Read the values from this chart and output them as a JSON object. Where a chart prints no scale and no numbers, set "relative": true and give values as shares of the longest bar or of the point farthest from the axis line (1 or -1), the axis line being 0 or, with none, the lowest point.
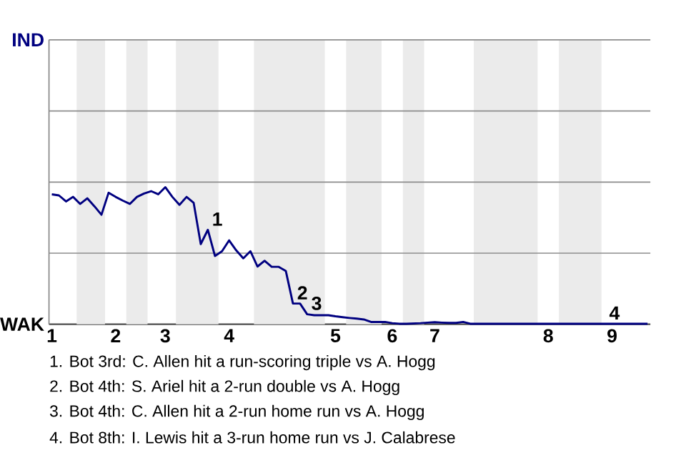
{
  "chart_data": {
    "type": "line",
    "relative": true,
    "ref_lines": [
      {
        "axis": "y",
        "value": 0.519,
        "color": "#8c8c8c"
      },
      {
        "axis": "y",
        "value": 1.037,
        "color": "#8c8c8c"
      },
      {
        "axis": "y",
        "value": 1.556,
        "color": "#8c8c8c"
      },
      {
        "axis": "y",
        "value": 2.075,
        "color": "#8c8c8c"
      }
    ],
    "categories": [
      "1",
      null,
      null,
      null,
      null,
      null,
      null,
      null,
      null,
      "2",
      null,
      null,
      null,
      null,
      null,
      null,
      "3",
      null,
      null,
      null,
      null,
      null,
      null,
      null,
      null,
      "4",
      null,
      null,
      null,
      null,
      null,
      null,
      null,
      null,
      null,
      null,
      null,
      null,
      null,
      null,
      "5",
      null,
      null,
      null,
      null,
      null,
      null,
      null,
      "6",
      null,
      null,
      null,
      null,
      null,
      "7",
      null,
      null,
      null,
      null,
      null,
      null,
      null,
      null,
      null,
      null,
      null,
      null,
      null,
      null,
      null,
      "8",
      null,
      null,
      null,
      null,
      null,
      null,
      null,
      null,
      "9",
      null,
      null,
      null,
      null,
      null
    ],
    "series": [
      {
        "color": "#000080",
        "values": [
          0.948,
          0.94,
          0.896,
          0.929,
          0.878,
          0.919,
          0.861,
          0.799,
          0.959,
          0.929,
          0.902,
          0.878,
          0.929,
          0.954,
          0.971,
          0.948,
          1,
          0.929,
          0.871,
          0.929,
          0.886,
          0.585,
          0.689,
          0.498,
          0.533,
          0.612,
          0.539,
          0.481,
          0.533,
          0.421,
          0.463,
          0.419,
          0.419,
          0.388,
          0.151,
          0.151,
          0.073,
          0.066,
          0.066,
          0.066,
          0.058,
          0.052,
          0.046,
          0.041,
          0.035,
          0.017,
          0.017,
          0.017,
          0.008,
          0.004,
          0.004,
          0.006,
          0.008,
          0.012,
          0.015,
          0.012,
          0.01,
          0.01,
          0.017,
          0.004,
          0.004,
          0.004,
          0.004,
          0.004,
          0.004,
          0.004,
          0.004,
          0.004,
          0.004,
          0.004,
          0.004,
          0.004,
          0.004,
          0.004,
          0.004,
          0.004,
          0.004,
          0.004,
          0.004,
          0.004,
          0.004,
          0.004,
          0.004,
          0.004,
          0.004
        ]
      }
    ],
    "annotations": [
      "IND",
      "WAK",
      "1",
      "2",
      "3",
      "4",
      "1. Bot 3rd: C. Allen hit a run-scoring triple vs A. Hogg",
      "2. Bot 4th: S. Ariel hit a 2-run double vs A. Hogg",
      "3. Bot 4th: C. Allen hit a 2-run home run vs A. Hogg",
      "4. Bot 8th: I. Lewis hit a 3-run home run vs J. Calabrese"
    ]
  }
}
